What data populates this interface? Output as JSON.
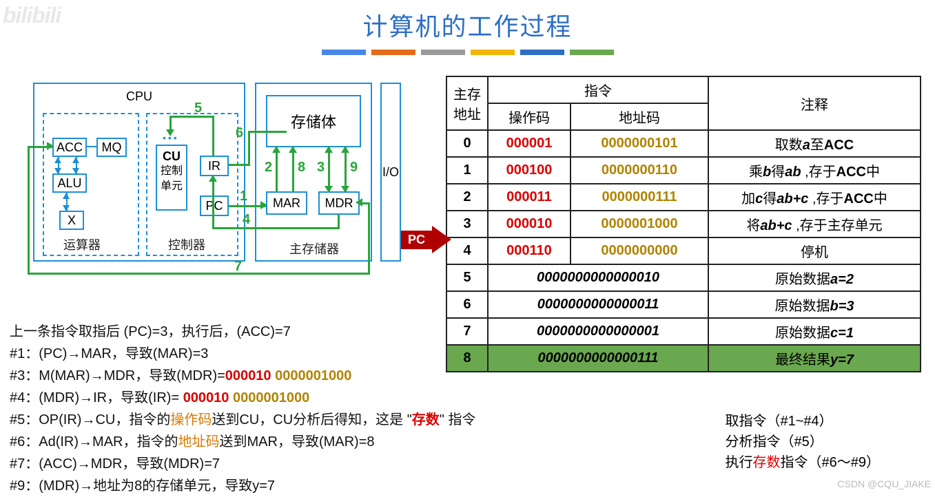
{
  "page": {
    "title": "计算机的工作过程",
    "watermark_tl": "bilibili",
    "watermark_br": "CSDN @CQU_JIAKE",
    "bar_colors": [
      "#4a86e8",
      "#e76b1c",
      "#999999",
      "#f2b705",
      "#2e6fc5",
      "#6aa84f"
    ]
  },
  "cpu": {
    "cpu_label": "CPU",
    "acc": "ACC",
    "mq": "MQ",
    "alu": "ALU",
    "x": "X",
    "cu": "CU",
    "cu_sub": "控制\n单元",
    "ir": "IR",
    "pc": "PC",
    "mar": "MAR",
    "mdr": "MDR",
    "storage_body": "存储体",
    "io": "I/O",
    "unit_arith": "运算器",
    "unit_ctrl": "控制器",
    "unit_mem": "主存储器",
    "nums": {
      "1": "1",
      "2": "2",
      "3": "3",
      "4": "4",
      "5": "5",
      "6": "6",
      "7": "7",
      "8": "8",
      "9": "9"
    }
  },
  "mem": {
    "h_addr": "主存\n地址",
    "h_instr": "指令",
    "h_op": "操作码",
    "h_ad": "地址码",
    "h_note": "注释",
    "rows": [
      {
        "addr": "0",
        "op": "000001",
        "ad": "0000000101",
        "note_pre": "取数",
        "note_em": "a",
        "note_mid": "至",
        "note_b": "ACC"
      },
      {
        "addr": "1",
        "op": "000100",
        "ad": "0000000110",
        "note_pre": "乘",
        "note_em": "b",
        "note_mid": "得",
        "note_em2": "ab",
        "note_tail": " ,存于",
        "note_b": "ACC",
        "note_suf": "中"
      },
      {
        "addr": "2",
        "op": "000011",
        "ad": "0000000111",
        "note_pre": "加",
        "note_em": "c",
        "note_mid": "得",
        "note_em2": "ab+c",
        "note_tail": " ,存于",
        "note_b": "ACC",
        "note_suf": "中"
      },
      {
        "addr": "3",
        "op": "000010",
        "ad": "0000001000",
        "note_pre": "将",
        "note_em": "ab+c",
        "note_tail": " ,存于主存单元"
      },
      {
        "addr": "4",
        "op": "000110",
        "ad": "0000000000",
        "note_pre": "停机"
      }
    ],
    "data_rows": [
      {
        "addr": "5",
        "bits": "0000000000000010",
        "note_pre": "原始数据",
        "note_em": "a=2"
      },
      {
        "addr": "6",
        "bits": "0000000000000011",
        "note_pre": "原始数据",
        "note_em": "b=3"
      },
      {
        "addr": "7",
        "bits": "0000000000000001",
        "note_pre": "原始数据",
        "note_em": "c=1"
      }
    ],
    "result": {
      "addr": "8",
      "bits": "0000000000000111",
      "note_pre": "最终结果",
      "note_em": "y=7"
    },
    "pc_label": "PC"
  },
  "steps": {
    "intro": "上一条指令取指后 (PC)=3，执行后，(ACC)=7",
    "s1_l": "#1：",
    "s1_a": "(PC)",
    "s1_b": "MAR，",
    "s1_c": "导致(MAR)=3",
    "s3_l": "#3：",
    "s3_a": "M(MAR)",
    "s3_b": "MDR，",
    "s3_c": "导致(MDR)=",
    "s3_op": "000010",
    "s3_ad": "0000001000",
    "s4_l": "#4：",
    "s4_a": "(MDR)",
    "s4_b": "IR，",
    "s4_c": "导致(IR)= ",
    "s4_op": "000010",
    "s4_ad": "0000001000",
    "s5_l": "#5：",
    "s5_a": "OP(IR)",
    "s5_b": "CU，",
    "s5_c": "指令的",
    "s5_d": "操作码",
    "s5_e": "送到CU，CU分析后得知，这是 \"",
    "s5_f": "存数",
    "s5_g": "\" 指令",
    "s6_l": "#6：",
    "s6_a": "Ad(IR)",
    "s6_b": "MAR，",
    "s6_c": "指令的",
    "s6_d": "地址码",
    "s6_e": "送到MAR，导致(MAR)=8",
    "s7_l": "#7：",
    "s7_a": "(ACC)",
    "s7_b": "MDR，",
    "s7_c": "导致(MDR)=7",
    "s9_l": "#9：",
    "s9_a": "(MDR)",
    "s9_b": "地址为8的存储单元，",
    "s9_c": "导致y=7",
    "arrow": "→"
  },
  "notes": {
    "l1": "取指令（#1~#4）",
    "l2": "分析指令（#5）",
    "l3a": "执行",
    "l3b": "存数",
    "l3c": "指令（#6～#9）"
  },
  "style": {
    "title_color": "#2e6fc5",
    "border_blue": "#1d8fd6",
    "green": "#2aa43a",
    "red": "#d90000",
    "gold": "#b08400",
    "orange": "#d97900",
    "result_bg": "#6aa84f"
  }
}
